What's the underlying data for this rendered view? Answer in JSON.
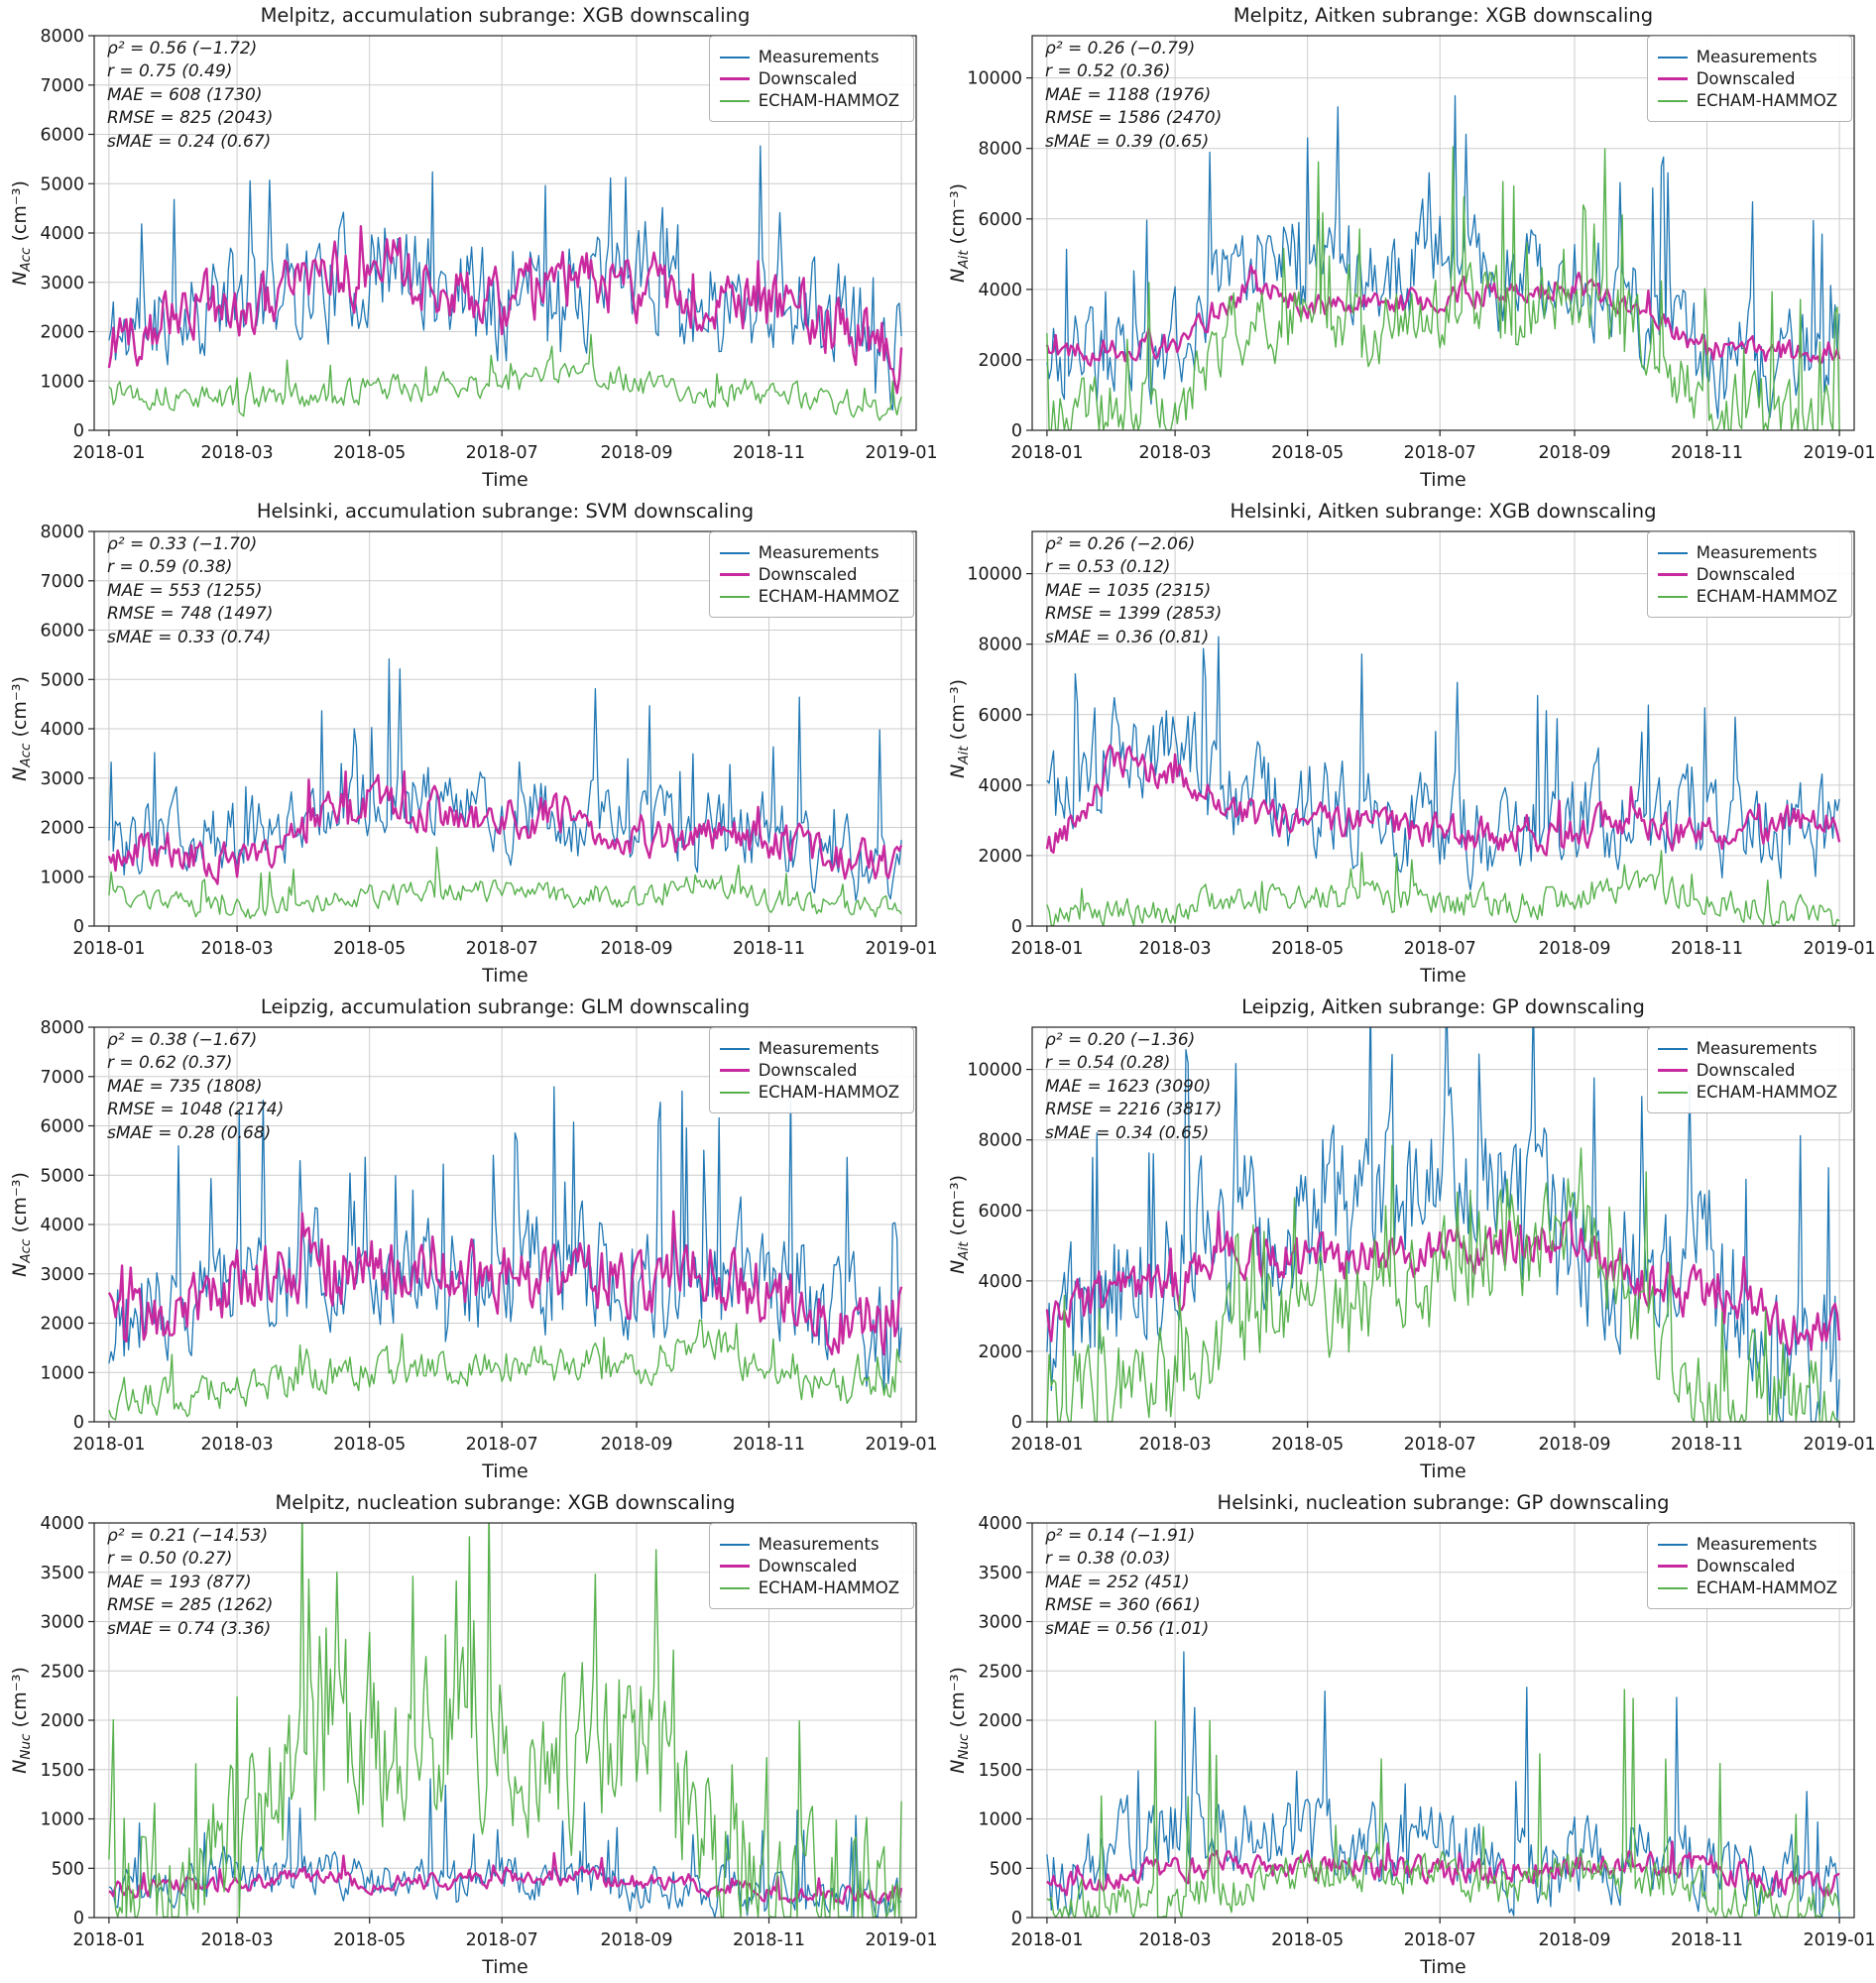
{
  "legend": {
    "items": [
      "Measurements",
      "Downscaled",
      "ECHAM-HAMMOZ"
    ]
  },
  "colors": {
    "measurements": "#1f77b4",
    "downscaled": "#c9299e",
    "echam": "#57b14c",
    "grid": "#cccccc",
    "axis": "#222222"
  },
  "xaxis": {
    "label": "Time",
    "ticks": [
      "2018-01",
      "2018-03",
      "2018-05",
      "2018-07",
      "2018-09",
      "2018-11",
      "2019-01"
    ],
    "tick_days": [
      0,
      59,
      120,
      181,
      243,
      304,
      365
    ]
  },
  "chart_data": [
    {
      "type": "line",
      "title": "Melpitz, accumulation subrange: XGB downscaling",
      "ylabel": {
        "main": "N",
        "sub": "Acc",
        "unit": "(cm⁻³)"
      },
      "ylim": [
        0,
        8000
      ],
      "yticks": [
        0,
        1000,
        2000,
        3000,
        4000,
        5000,
        6000,
        7000,
        8000
      ],
      "stats": [
        "ρ² = 0.56 (−1.72)",
        "r = 0.75 (0.49)",
        "MAE = 608 (1730)",
        "RMSE = 825 (2043)",
        "sMAE = 0.24 (0.67)"
      ],
      "series": [
        {
          "name": "Measurements",
          "color_key": "measurements",
          "width": 1.3,
          "seed": 11,
          "noise": 1100,
          "spike_p": 0.06,
          "spike_amp": 2400,
          "anchors": [
            1800,
            2600,
            2600,
            3000,
            3200,
            3000,
            2600,
            2900,
            2900,
            2600,
            2700,
            2300,
            1500
          ]
        },
        {
          "name": "Downscaled",
          "color_key": "downscaled",
          "width": 2.4,
          "seed": 12,
          "noise": 650,
          "spike_p": 0.03,
          "spike_amp": 900,
          "anchors": [
            1500,
            2600,
            2500,
            3100,
            3300,
            3100,
            2500,
            3100,
            2900,
            2600,
            2600,
            2200,
            1500
          ]
        },
        {
          "name": "ECHAM-HAMMOZ",
          "color_key": "echam",
          "width": 1.4,
          "seed": 13,
          "noise": 280,
          "spike_p": 0.05,
          "spike_amp": 550,
          "anchors": [
            850,
            700,
            600,
            700,
            800,
            850,
            900,
            1250,
            950,
            700,
            800,
            550,
            400
          ]
        }
      ]
    },
    {
      "type": "line",
      "title": "Melpitz, Aitken subrange: XGB downscaling",
      "ylabel": {
        "main": "N",
        "sub": "Ait",
        "unit": "(cm⁻³)"
      },
      "ylim": [
        0,
        11200
      ],
      "yticks": [
        0,
        2000,
        4000,
        6000,
        8000,
        10000
      ],
      "stats": [
        "ρ² = 0.26 (−0.79)",
        "r = 0.52 (0.36)",
        "MAE = 1188 (1976)",
        "RMSE = 1586 (2470)",
        "sMAE = 0.39 (0.65)"
      ],
      "series": [
        {
          "name": "Measurements",
          "color_key": "measurements",
          "width": 1.3,
          "seed": 21,
          "noise": 1500,
          "spike_p": 0.08,
          "spike_amp": 3500,
          "anchors": [
            2100,
            2100,
            2800,
            4800,
            5200,
            4200,
            5000,
            4200,
            4300,
            3300,
            2100,
            1900,
            2100
          ]
        },
        {
          "name": "Downscaled",
          "color_key": "downscaled",
          "width": 2.4,
          "seed": 22,
          "noise": 380,
          "spike_p": 0.02,
          "spike_amp": 600,
          "anchors": [
            2350,
            2300,
            2500,
            4100,
            3600,
            3500,
            3800,
            4000,
            4100,
            3300,
            2300,
            2250,
            2300
          ]
        },
        {
          "name": "ECHAM-HAMMOZ",
          "color_key": "echam",
          "width": 1.4,
          "seed": 23,
          "noise": 1100,
          "spike_p": 0.07,
          "spike_amp": 3400,
          "anchors": [
            350,
            500,
            900,
            3200,
            3300,
            2800,
            3400,
            3500,
            3800,
            2800,
            600,
            250,
            200
          ]
        }
      ]
    },
    {
      "type": "line",
      "title": "Helsinki, accumulation subrange: SVM downscaling",
      "ylabel": {
        "main": "N",
        "sub": "Acc",
        "unit": "(cm⁻³)"
      },
      "ylim": [
        0,
        8000
      ],
      "yticks": [
        0,
        1000,
        2000,
        3000,
        4000,
        5000,
        6000,
        7000,
        8000
      ],
      "stats": [
        "ρ² = 0.33 (−1.70)",
        "r = 0.59 (0.38)",
        "MAE = 553 (1255)",
        "RMSE = 748 (1497)",
        "sMAE = 0.33 (0.74)"
      ],
      "series": [
        {
          "name": "Measurements",
          "color_key": "measurements",
          "width": 1.3,
          "seed": 31,
          "noise": 800,
          "spike_p": 0.05,
          "spike_amp": 1900,
          "anchors": [
            1500,
            1900,
            1800,
            2300,
            2600,
            2600,
            2300,
            2200,
            2000,
            1900,
            1900,
            1300,
            1100
          ]
        },
        {
          "name": "Downscaled",
          "color_key": "downscaled",
          "width": 2.4,
          "seed": 32,
          "noise": 420,
          "spike_p": 0.03,
          "spike_amp": 700,
          "anchors": [
            1500,
            1500,
            1300,
            2100,
            2600,
            2300,
            2200,
            2200,
            1900,
            1800,
            1800,
            1400,
            1200
          ]
        },
        {
          "name": "ECHAM-HAMMOZ",
          "color_key": "echam",
          "width": 1.4,
          "seed": 33,
          "noise": 230,
          "spike_p": 0.05,
          "spike_amp": 600,
          "anchors": [
            600,
            420,
            300,
            420,
            620,
            720,
            720,
            620,
            520,
            900,
            520,
            420,
            350
          ]
        }
      ]
    },
    {
      "type": "line",
      "title": "Helsinki, Aitken subrange: XGB downscaling",
      "ylabel": {
        "main": "N",
        "sub": "Ait",
        "unit": "(cm⁻³)"
      },
      "ylim": [
        0,
        11200
      ],
      "yticks": [
        0,
        2000,
        4000,
        6000,
        8000,
        10000
      ],
      "stats": [
        "ρ² = 0.26 (−2.06)",
        "r = 0.53 (0.12)",
        "MAE = 1035 (2315)",
        "RMSE = 1399 (2853)",
        "sMAE = 0.36 (0.81)"
      ],
      "series": [
        {
          "name": "Measurements",
          "color_key": "measurements",
          "width": 1.3,
          "seed": 41,
          "noise": 1400,
          "spike_p": 0.07,
          "spike_amp": 3600,
          "anchors": [
            3300,
            5000,
            5200,
            3600,
            3600,
            3100,
            2600,
            2600,
            2900,
            3100,
            2700,
            2700,
            2500
          ]
        },
        {
          "name": "Downscaled",
          "color_key": "downscaled",
          "width": 2.4,
          "seed": 42,
          "noise": 520,
          "spike_p": 0.02,
          "spike_amp": 800,
          "anchors": [
            2100,
            4600,
            4200,
            3100,
            3100,
            2800,
            2700,
            2600,
            2700,
            3000,
            2600,
            2900,
            2900
          ]
        },
        {
          "name": "ECHAM-HAMMOZ",
          "color_key": "echam",
          "width": 1.4,
          "seed": 43,
          "noise": 420,
          "spike_p": 0.05,
          "spike_amp": 900,
          "anchors": [
            250,
            300,
            500,
            800,
            850,
            800,
            620,
            520,
            820,
            1050,
            820,
            420,
            300
          ]
        }
      ]
    },
    {
      "type": "line",
      "title": "Leipzig, accumulation subrange: GLM downscaling",
      "ylabel": {
        "main": "N",
        "sub": "Acc",
        "unit": "(cm⁻³)"
      },
      "ylim": [
        0,
        8000
      ],
      "yticks": [
        0,
        1000,
        2000,
        3000,
        4000,
        5000,
        6000,
        7000,
        8000
      ],
      "stats": [
        "ρ² = 0.38 (−1.67)",
        "r = 0.62 (0.37)",
        "MAE = 735 (1808)",
        "RMSE = 1048 (2174)",
        "sMAE = 0.28 (0.68)"
      ],
      "series": [
        {
          "name": "Measurements",
          "color_key": "measurements",
          "width": 1.3,
          "seed": 51,
          "noise": 1200,
          "spike_p": 0.06,
          "spike_amp": 2800,
          "anchors": [
            1900,
            2600,
            2900,
            3100,
            3000,
            3000,
            2900,
            3100,
            3100,
            2900,
            3100,
            2100,
            1300
          ]
        },
        {
          "name": "Downscaled",
          "color_key": "downscaled",
          "width": 2.4,
          "seed": 52,
          "noise": 700,
          "spike_p": 0.03,
          "spike_amp": 900,
          "anchors": [
            2300,
            2300,
            2900,
            3300,
            3000,
            2900,
            2900,
            2900,
            2900,
            3100,
            2600,
            2100,
            2100
          ]
        },
        {
          "name": "ECHAM-HAMMOZ",
          "color_key": "echam",
          "width": 1.4,
          "seed": 53,
          "noise": 380,
          "spike_p": 0.05,
          "spike_amp": 800,
          "anchors": [
            520,
            520,
            720,
            950,
            1050,
            1050,
            1150,
            1150,
            1050,
            1850,
            850,
            720,
            900
          ]
        }
      ]
    },
    {
      "type": "line",
      "title": "Leipzig, Aitken subrange: GP downscaling",
      "ylabel": {
        "main": "N",
        "sub": "Ait",
        "unit": "(cm⁻³)"
      },
      "ylim": [
        0,
        11200
      ],
      "yticks": [
        0,
        2000,
        4000,
        6000,
        8000,
        10000
      ],
      "stats": [
        "ρ² = 0.20 (−1.36)",
        "r = 0.54 (0.28)",
        "MAE = 1623 (3090)",
        "RMSE = 2216 (3817)",
        "sMAE = 0.34 (0.65)"
      ],
      "series": [
        {
          "name": "Measurements",
          "color_key": "measurements",
          "width": 1.3,
          "seed": 61,
          "noise": 2200,
          "spike_p": 0.08,
          "spike_amp": 4200,
          "anchors": [
            1800,
            3600,
            4600,
            5600,
            5600,
            6100,
            7100,
            6600,
            5200,
            4100,
            4600,
            2100,
            1200
          ]
        },
        {
          "name": "Downscaled",
          "color_key": "downscaled",
          "width": 2.4,
          "seed": 62,
          "noise": 700,
          "spike_p": 0.03,
          "spike_amp": 1100,
          "anchors": [
            2900,
            3600,
            3900,
            4900,
            4600,
            4600,
            4900,
            5100,
            5100,
            4100,
            3600,
            2900,
            2500
          ]
        },
        {
          "name": "ECHAM-HAMMOZ",
          "color_key": "echam",
          "width": 1.4,
          "seed": 63,
          "noise": 1500,
          "spike_p": 0.07,
          "spike_amp": 3200,
          "anchors": [
            520,
            820,
            1050,
            3100,
            3600,
            3100,
            4100,
            5100,
            5100,
            3100,
            1050,
            520,
            400
          ]
        }
      ]
    },
    {
      "type": "line",
      "title": "Melpitz, nucleation subrange: XGB downscaling",
      "ylabel": {
        "main": "N",
        "sub": "Nuc",
        "unit": "(cm⁻³)"
      },
      "ylim": [
        0,
        4000
      ],
      "yticks": [
        0,
        500,
        1000,
        1500,
        2000,
        2500,
        3000,
        3500,
        4000
      ],
      "stats": [
        "ρ² = 0.21 (−14.53)",
        "r = 0.50 (0.27)",
        "MAE = 193 (877)",
        "RMSE = 285 (1262)",
        "sMAE = 0.74 (3.36)"
      ],
      "series": [
        {
          "name": "Measurements",
          "color_key": "measurements",
          "width": 1.3,
          "seed": 71,
          "noise": 230,
          "spike_p": 0.06,
          "spike_amp": 800,
          "anchors": [
            210,
            310,
            520,
            420,
            420,
            310,
            420,
            310,
            310,
            310,
            210,
            210,
            180
          ]
        },
        {
          "name": "Downscaled",
          "color_key": "downscaled",
          "width": 2.4,
          "seed": 72,
          "noise": 90,
          "spike_p": 0.03,
          "spike_amp": 200,
          "anchors": [
            310,
            310,
            360,
            420,
            360,
            360,
            420,
            420,
            360,
            310,
            260,
            260,
            250
          ]
        },
        {
          "name": "ECHAM-HAMMOZ",
          "color_key": "echam",
          "width": 1.4,
          "seed": 73,
          "noise": 900,
          "spike_p": 0.1,
          "spike_amp": 1500,
          "anchors": [
            210,
            310,
            520,
            1900,
            1600,
            1600,
            1900,
            1600,
            1900,
            850,
            310,
            210,
            150
          ]
        }
      ]
    },
    {
      "type": "line",
      "title": "Helsinki, nucleation subrange: GP downscaling",
      "ylabel": {
        "main": "N",
        "sub": "Nuc",
        "unit": "(cm⁻³)"
      },
      "ylim": [
        0,
        4000
      ],
      "yticks": [
        0,
        500,
        1000,
        1500,
        2000,
        2500,
        3000,
        3500,
        4000
      ],
      "stats": [
        "ρ² = 0.14 (−1.91)",
        "r = 0.38 (0.03)",
        "MAE = 252 (451)",
        "RMSE = 360 (661)",
        "sMAE = 0.56 (1.01)"
      ],
      "series": [
        {
          "name": "Measurements",
          "color_key": "measurements",
          "width": 1.3,
          "seed": 81,
          "noise": 420,
          "spike_p": 0.05,
          "spike_amp": 1400,
          "anchors": [
            400,
            720,
            950,
            820,
            720,
            720,
            820,
            520,
            520,
            620,
            520,
            400,
            350
          ]
        },
        {
          "name": "Downscaled",
          "color_key": "downscaled",
          "width": 2.4,
          "seed": 82,
          "noise": 130,
          "spike_p": 0.02,
          "spike_amp": 250,
          "anchors": [
            310,
            420,
            520,
            520,
            520,
            520,
            460,
            460,
            520,
            570,
            520,
            360,
            330
          ]
        },
        {
          "name": "ECHAM-HAMMOZ",
          "color_key": "echam",
          "width": 1.4,
          "seed": 83,
          "noise": 230,
          "spike_p": 0.04,
          "spike_amp": 1600,
          "anchors": [
            110,
            110,
            160,
            310,
            420,
            520,
            420,
            310,
            420,
            420,
            210,
            110,
            90
          ]
        }
      ]
    }
  ]
}
